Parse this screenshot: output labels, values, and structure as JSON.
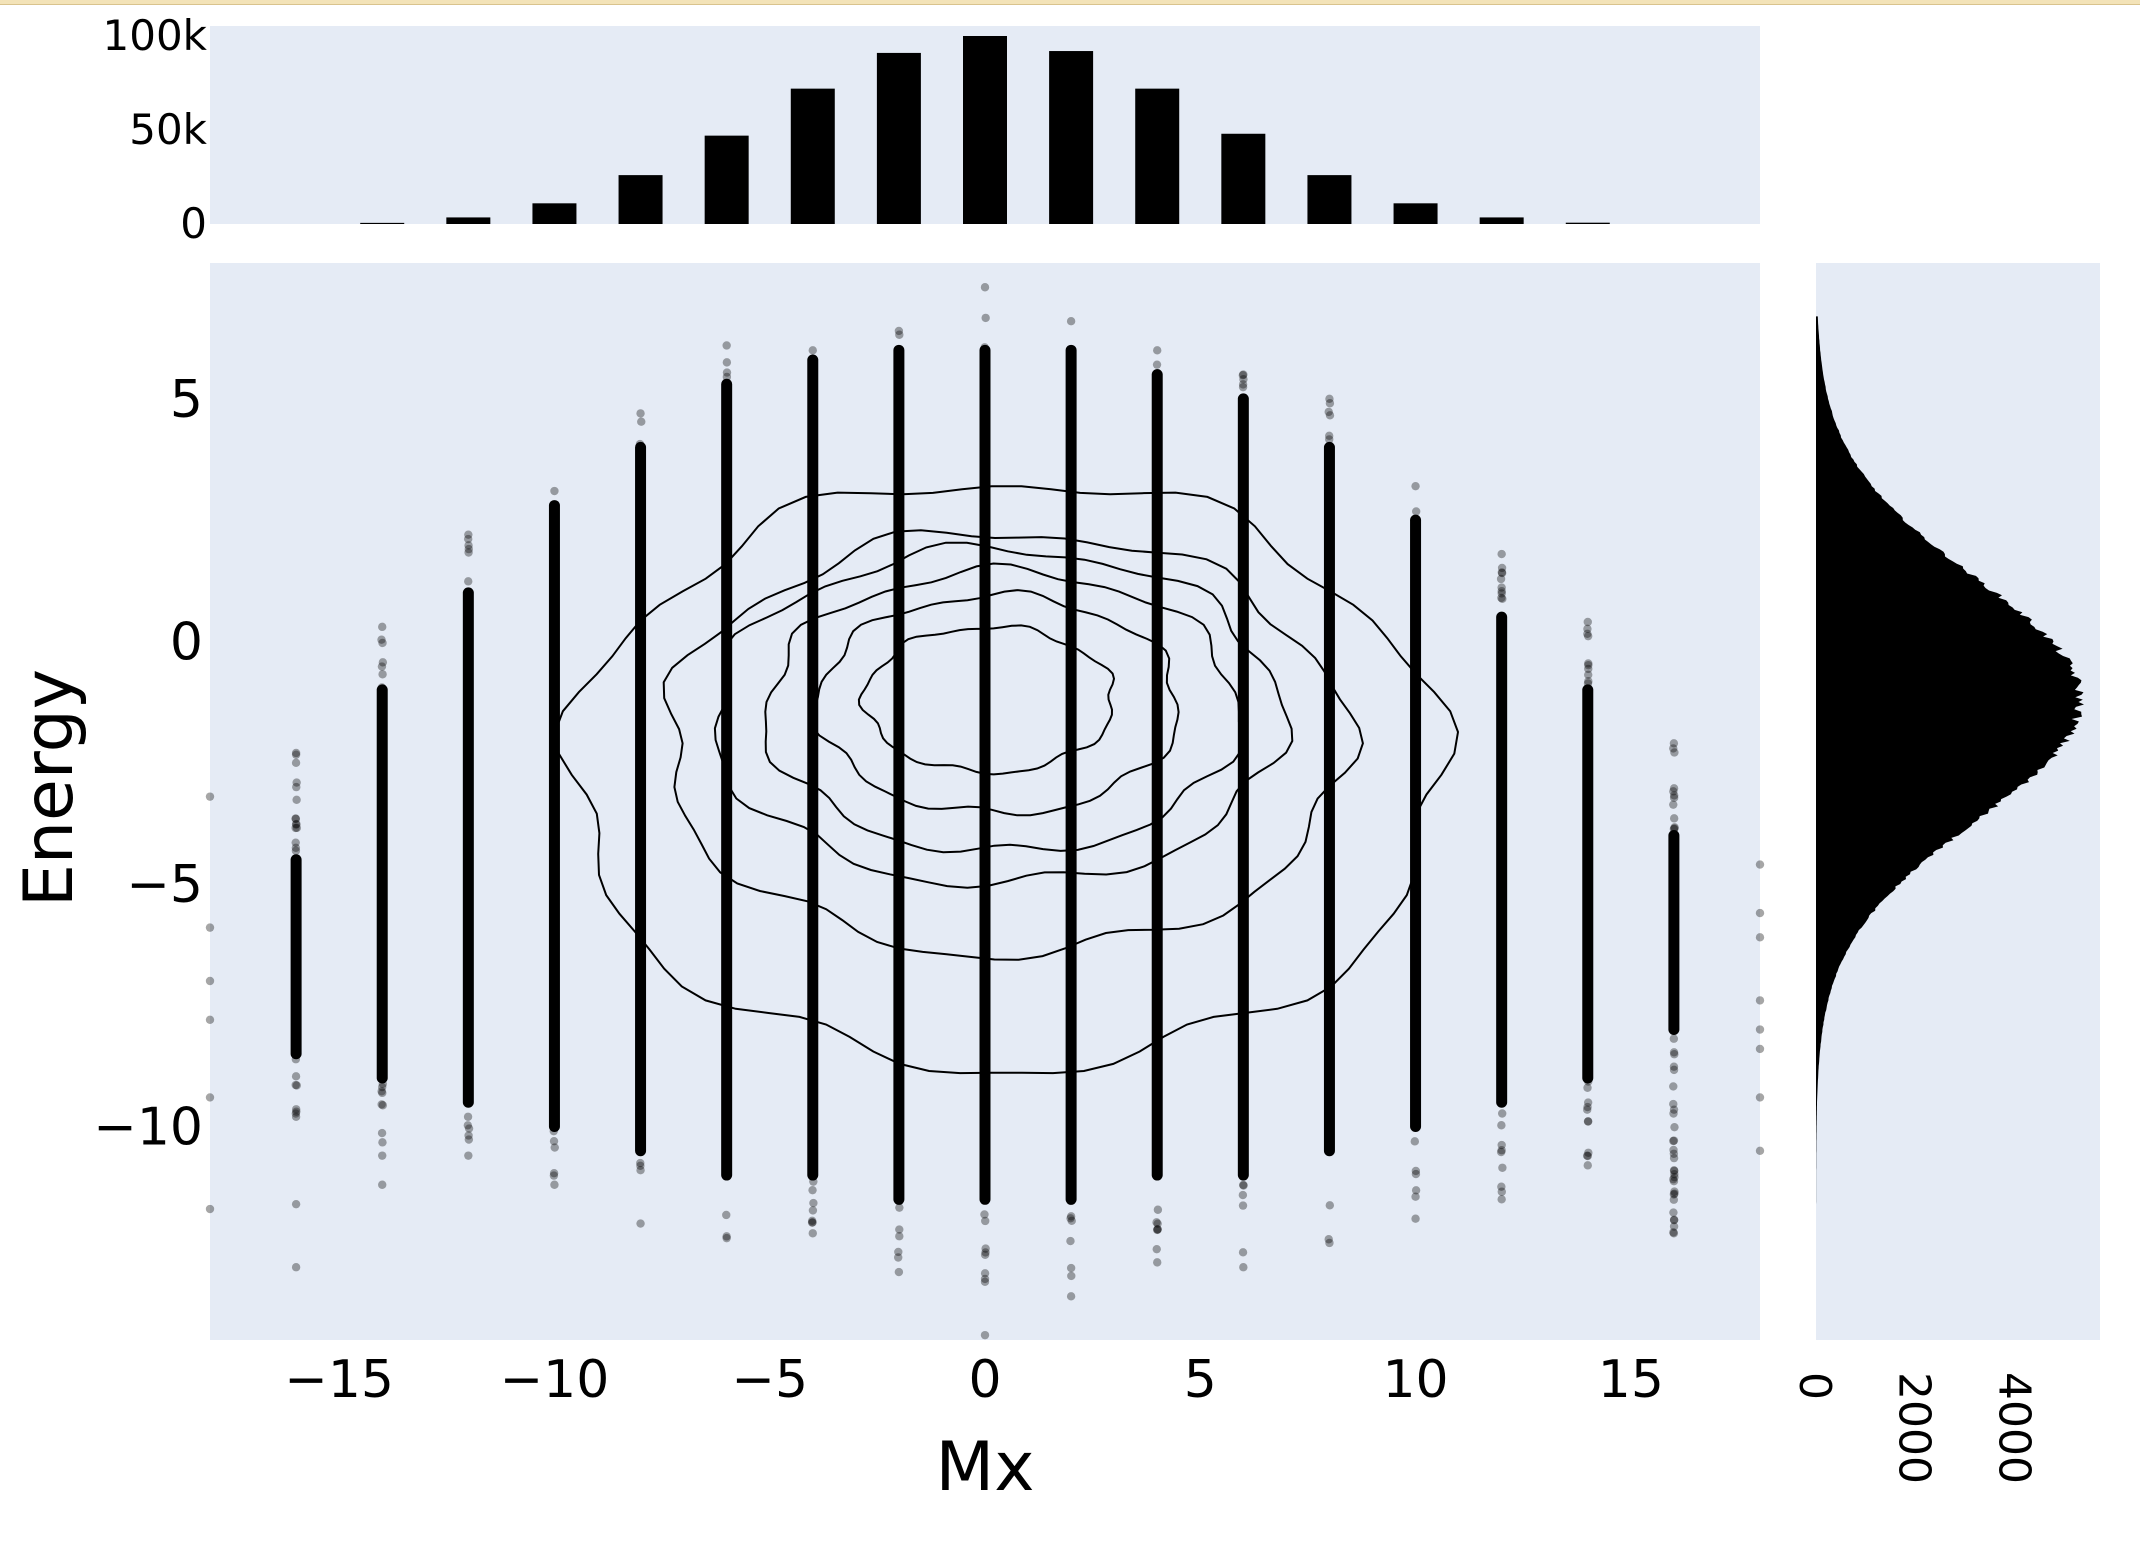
{
  "chart_data": [
    {
      "type": "scatter",
      "subtype": "scatter-with-contours",
      "xlabel": "Mx",
      "ylabel": "Energy",
      "xlim": [
        -18,
        18
      ],
      "ylim": [
        -14.4,
        7.8
      ],
      "xticks": [
        -15,
        -10,
        -5,
        0,
        5,
        10,
        15
      ],
      "yticks": [
        -10,
        -5,
        0,
        5
      ],
      "xtick_labels": [
        "−15",
        "−10",
        "−5",
        "0",
        "5",
        "10",
        "15"
      ],
      "ytick_labels": [
        "−10",
        "−5",
        "0",
        "5"
      ],
      "point_color": "#000000",
      "point_opacity": 0.35,
      "background": "#e5ebf5",
      "columns": [
        {
          "x": -16,
          "ymin": -9.8,
          "ymax": -2.3,
          "dense_min": -8.5,
          "dense_max": -4.5,
          "outliers": [
            -11.6,
            -12.9
          ]
        },
        {
          "x": -14,
          "ymin": -10.6,
          "ymax": 0.3,
          "dense_min": -9.0,
          "dense_max": -1.0,
          "outliers": [
            -11.2
          ]
        },
        {
          "x": -12,
          "ymin": -10.6,
          "ymax": 2.2,
          "dense_min": -9.5,
          "dense_max": 1.0,
          "outliers": []
        },
        {
          "x": -10,
          "ymin": -11.2,
          "ymax": 3.1,
          "dense_min": -10.0,
          "dense_max": 2.8,
          "outliers": []
        },
        {
          "x": -8,
          "ymin": -10.9,
          "ymax": 4.7,
          "dense_min": -10.5,
          "dense_max": 4.0,
          "outliers": [
            -12.0
          ]
        },
        {
          "x": -6,
          "ymin": -12.3,
          "ymax": 6.1,
          "dense_min": -11.0,
          "dense_max": 5.3,
          "outliers": []
        },
        {
          "x": -4,
          "ymin": -12.2,
          "ymax": 6.0,
          "dense_min": -11.0,
          "dense_max": 5.8,
          "outliers": []
        },
        {
          "x": -2,
          "ymin": -13.0,
          "ymax": 6.4,
          "dense_min": -11.5,
          "dense_max": 6.0,
          "outliers": []
        },
        {
          "x": 0,
          "ymin": -13.2,
          "ymax": 7.3,
          "dense_min": -11.5,
          "dense_max": 6.0,
          "outliers": [
            -14.3
          ]
        },
        {
          "x": 2,
          "ymin": -13.5,
          "ymax": 6.6,
          "dense_min": -11.5,
          "dense_max": 6.0,
          "outliers": []
        },
        {
          "x": 4,
          "ymin": -12.8,
          "ymax": 6.0,
          "dense_min": -11.0,
          "dense_max": 5.5,
          "outliers": []
        },
        {
          "x": 6,
          "ymin": -12.9,
          "ymax": 5.5,
          "dense_min": -11.0,
          "dense_max": 5.0,
          "outliers": []
        },
        {
          "x": 8,
          "ymin": -12.4,
          "ymax": 5.0,
          "dense_min": -10.5,
          "dense_max": 4.0,
          "outliers": []
        },
        {
          "x": 10,
          "ymin": -11.9,
          "ymax": 3.2,
          "dense_min": -10.0,
          "dense_max": 2.5,
          "outliers": []
        },
        {
          "x": 12,
          "ymin": -11.5,
          "ymax": 1.8,
          "dense_min": -9.5,
          "dense_max": 0.5,
          "outliers": []
        },
        {
          "x": 14,
          "ymin": -10.8,
          "ymax": 0.4,
          "dense_min": -9.0,
          "dense_max": -1.0,
          "outliers": []
        },
        {
          "x": 16,
          "ymin": -12.2,
          "ymax": -2.1,
          "dense_min": -8.0,
          "dense_max": -4.0,
          "outliers": [
            -11.4
          ]
        }
      ],
      "edge_points": [
        {
          "x": -18,
          "y": -3.2
        },
        {
          "x": -18,
          "y": -5.9
        },
        {
          "x": -18,
          "y": -7.0
        },
        {
          "x": -18,
          "y": -7.8
        },
        {
          "x": -18,
          "y": -9.4
        },
        {
          "x": -18,
          "y": -11.7
        },
        {
          "x": 18,
          "y": -4.6
        },
        {
          "x": 18,
          "y": -5.6
        },
        {
          "x": 18,
          "y": -6.1
        },
        {
          "x": 18,
          "y": -7.4
        },
        {
          "x": 18,
          "y": -8.0
        },
        {
          "x": 18,
          "y": -8.4
        },
        {
          "x": 18,
          "y": -9.4
        },
        {
          "x": 18,
          "y": -10.5
        }
      ],
      "contours": [
        {
          "cx": 0.5,
          "cy": -2.75,
          "rx": 10.1,
          "ry": 6.05
        },
        {
          "cx": 0.5,
          "cy": -2.1,
          "rx": 7.9,
          "ry": 4.35
        },
        {
          "cx": 0.3,
          "cy": -1.55,
          "rx": 6.6,
          "ry": 3.45
        },
        {
          "cx": 0.4,
          "cy": -1.45,
          "rx": 5.5,
          "ry": 2.9
        },
        {
          "cx": 0.3,
          "cy": -1.3,
          "rx": 4.2,
          "ry": 2.25
        },
        {
          "cx": 0.1,
          "cy": -1.2,
          "rx": 2.9,
          "ry": 1.5
        }
      ]
    },
    {
      "type": "bar",
      "role": "marginal-x",
      "x": [
        -14,
        -12,
        -10,
        -8,
        -6,
        -4,
        -2,
        0,
        2,
        4,
        6,
        8,
        10,
        12,
        14
      ],
      "values": [
        600,
        3500,
        11000,
        26000,
        47000,
        72000,
        91000,
        100000,
        92000,
        72000,
        48000,
        26000,
        11000,
        3500,
        700
      ],
      "ylim": [
        0,
        100000
      ],
      "yticks": [
        0,
        50000,
        100000
      ],
      "ytick_labels": [
        "0",
        "50k",
        "100k"
      ],
      "color": "#000000",
      "background": "#e5ebf5"
    },
    {
      "type": "bar",
      "role": "marginal-y-horizontal",
      "bin_width": 0.05,
      "distribution": {
        "mean": -1.2,
        "sd": 2.5,
        "peak": 5300,
        "y_min": -13.3,
        "y_max": 6.7
      },
      "xlim": [
        0,
        5700
      ],
      "xticks": [
        0,
        2000,
        4000
      ],
      "xtick_labels": [
        "0",
        "2000",
        "4000"
      ],
      "color": "#000000",
      "background": "#e5ebf5"
    }
  ]
}
